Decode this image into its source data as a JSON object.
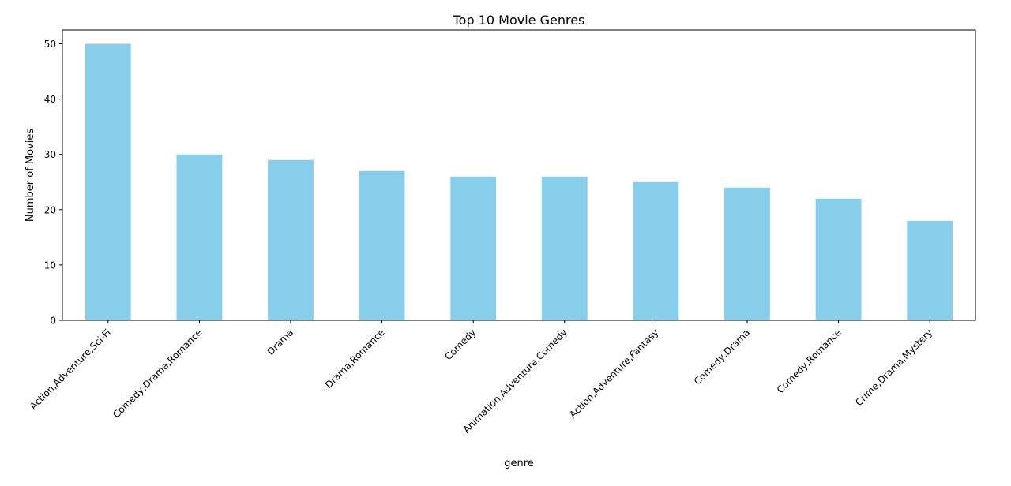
{
  "chart_data": {
    "type": "bar",
    "title": "Top 10 Movie Genres",
    "xlabel": "genre",
    "ylabel": "Number of Movies",
    "categories": [
      "Action,Adventure,Sci-Fi",
      "Comedy,Drama,Romance",
      "Drama",
      "Drama,Romance",
      "Comedy",
      "Animation,Adventure,Comedy",
      "Action,Adventure,Fantasy",
      "Comedy,Drama",
      "Comedy,Romance",
      "Crime,Drama,Mystery"
    ],
    "values": [
      50,
      30,
      29,
      27,
      26,
      26,
      25,
      24,
      22,
      18
    ],
    "ylim": [
      0,
      52.5
    ],
    "yticks": [
      0,
      10,
      20,
      30,
      40,
      50
    ],
    "bar_color": "#87CEEB",
    "grid": false,
    "legend": "none"
  }
}
